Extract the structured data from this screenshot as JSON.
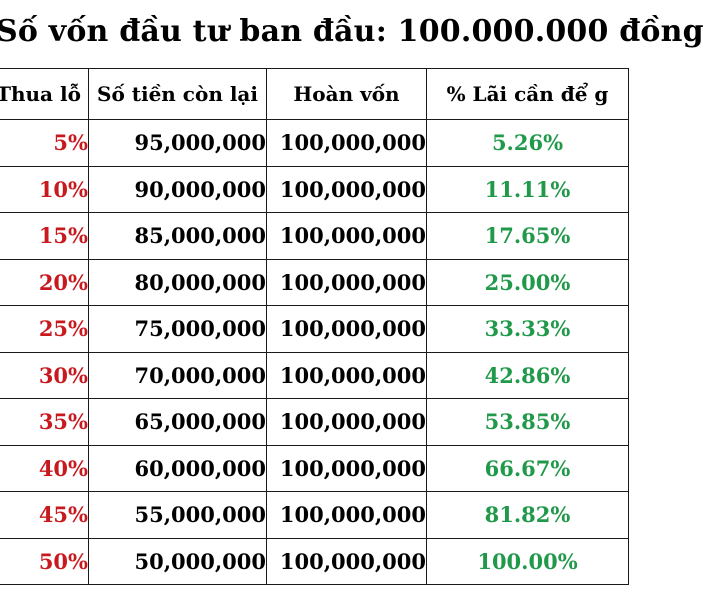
{
  "title": "Số vốn đầu tư ban đầu: 100.000.000 đồng",
  "headers": {
    "loss": "Thua lỗ",
    "remaining": "Số tiền còn lại",
    "breakeven": "Hoàn vốn",
    "gain_needed": "% Lãi cần để g"
  },
  "colors": {
    "loss": "#c8191e",
    "gain": "#21994a",
    "text": "#000000",
    "border": "#1a1a1a"
  },
  "rows": [
    {
      "loss": "5%",
      "remaining": "95,000,000",
      "breakeven": "100,000,000",
      "gain_needed": "5.26%"
    },
    {
      "loss": "10%",
      "remaining": "90,000,000",
      "breakeven": "100,000,000",
      "gain_needed": "11.11%"
    },
    {
      "loss": "15%",
      "remaining": "85,000,000",
      "breakeven": "100,000,000",
      "gain_needed": "17.65%"
    },
    {
      "loss": "20%",
      "remaining": "80,000,000",
      "breakeven": "100,000,000",
      "gain_needed": "25.00%"
    },
    {
      "loss": "25%",
      "remaining": "75,000,000",
      "breakeven": "100,000,000",
      "gain_needed": "33.33%"
    },
    {
      "loss": "30%",
      "remaining": "70,000,000",
      "breakeven": "100,000,000",
      "gain_needed": "42.86%"
    },
    {
      "loss": "35%",
      "remaining": "65,000,000",
      "breakeven": "100,000,000",
      "gain_needed": "53.85%"
    },
    {
      "loss": "40%",
      "remaining": "60,000,000",
      "breakeven": "100,000,000",
      "gain_needed": "66.67%"
    },
    {
      "loss": "45%",
      "remaining": "55,000,000",
      "breakeven": "100,000,000",
      "gain_needed": "81.82%"
    },
    {
      "loss": "50%",
      "remaining": "50,000,000",
      "breakeven": "100,000,000",
      "gain_needed": "100.00%"
    }
  ]
}
